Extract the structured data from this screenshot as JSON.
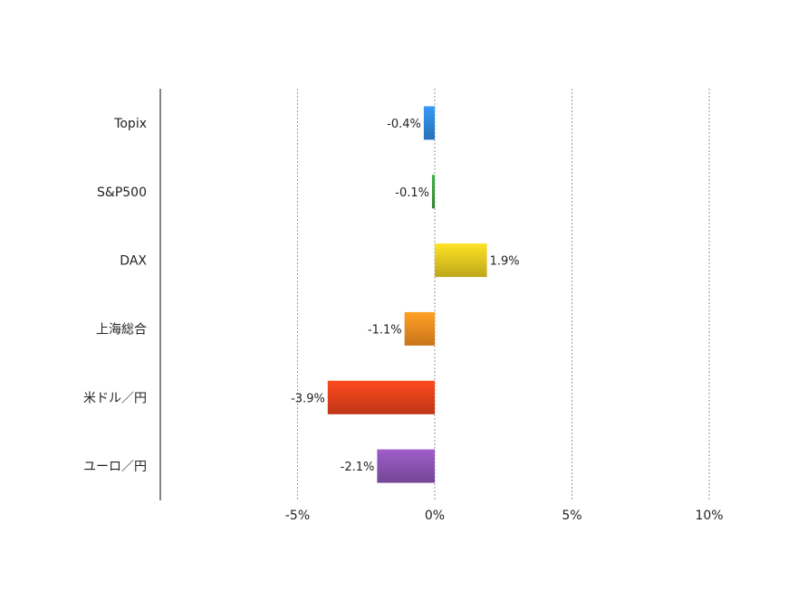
{
  "chart_data": {
    "type": "bar",
    "orientation": "horizontal",
    "categories": [
      "Topix",
      "S&P500",
      "DAX",
      "上海総合",
      "米ドル／円",
      "ユーロ／円"
    ],
    "values": [
      -0.4,
      -0.1,
      1.9,
      -1.1,
      -3.9,
      -2.1
    ],
    "data_labels": [
      "-0.4%",
      "-0.1%",
      "1.9%",
      "-1.1%",
      "-3.9%",
      "-2.1%"
    ],
    "colors": [
      "#2f86d6",
      "#3a9a3a",
      "#e0c51f",
      "#ec8a1f",
      "#e0401a",
      "#8a52b0"
    ],
    "xlim": [
      -10,
      10
    ],
    "x_ticks": [
      -5,
      0,
      5,
      10
    ],
    "x_tick_labels": [
      "-5%",
      "0%",
      "5%",
      "10%"
    ],
    "grid": true,
    "title": "",
    "xlabel": "",
    "ylabel": ""
  }
}
